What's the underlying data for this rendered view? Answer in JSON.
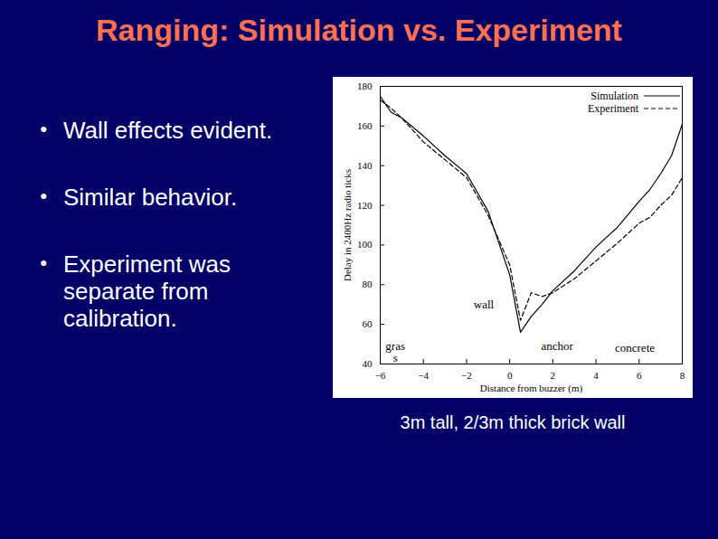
{
  "slide": {
    "title": "Ranging: Simulation vs. Experiment",
    "bullets": [
      "Wall effects evident.",
      "Similar behavior.",
      "Experiment was separate from calibration."
    ],
    "caption": "3m tall, 2/3m thick brick wall"
  },
  "chart_data": {
    "type": "line",
    "xlabel": "Distance from buzzer (m)",
    "ylabel": "Delay in 2400Hz radio ticks",
    "x": [
      -6,
      -5.5,
      -5,
      -4,
      -3,
      -2,
      -1,
      0,
      0.5,
      1,
      1.5,
      2,
      3,
      4,
      5,
      6,
      6.5,
      7,
      7.5,
      8
    ],
    "series": [
      {
        "name": "Simulation",
        "color": "#000000",
        "line_style": "solid",
        "values": [
          175,
          167,
          164,
          155,
          145,
          136,
          117,
          85,
          56,
          64,
          70,
          77,
          87,
          99,
          109,
          122,
          128,
          136,
          145,
          161
        ]
      },
      {
        "name": "Experiment",
        "color": "#000000",
        "line_style": "dashed",
        "values": [
          173,
          169,
          164,
          152,
          143,
          134,
          115,
          90,
          62,
          76,
          74,
          76,
          83,
          92,
          101,
          111,
          114,
          120,
          125,
          134
        ]
      }
    ],
    "xlim": [
      -6,
      8
    ],
    "xticks": [
      -6,
      -4,
      -2,
      0,
      2,
      4,
      6,
      8
    ],
    "ylim": [
      40,
      180
    ],
    "yticks": [
      40,
      60,
      80,
      100,
      120,
      140,
      160,
      180
    ],
    "grid": false,
    "legend": "top-right",
    "annotations": [
      {
        "text": "wall",
        "x": -1.2,
        "y": 70
      },
      {
        "text": "anchor",
        "x": 2.2,
        "y": 49
      },
      {
        "text": "gras\ns",
        "x": -5.3,
        "y": 46
      },
      {
        "text": "concrete",
        "x": 5.8,
        "y": 48
      }
    ]
  }
}
